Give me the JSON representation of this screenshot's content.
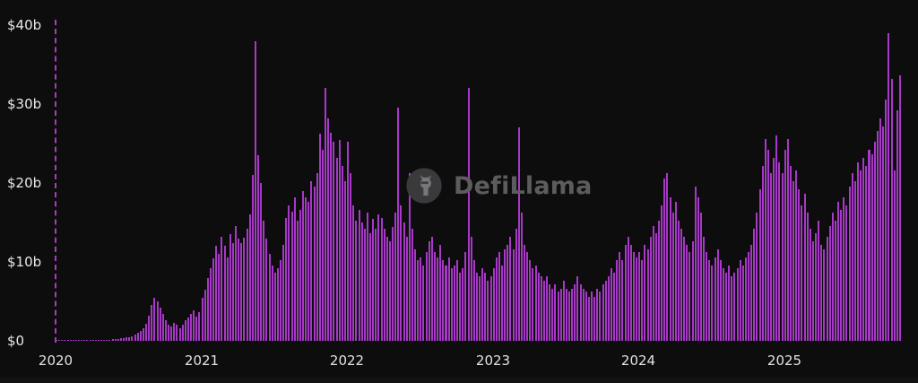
{
  "watermark": {
    "text": "DefiLlama"
  },
  "chart_data": {
    "type": "bar",
    "title": "",
    "xlabel": "",
    "ylabel": "",
    "unit": "USD billions",
    "interval": "weekly",
    "x_range": [
      "2020-01",
      "2025-10"
    ],
    "ylim": [
      0,
      40
    ],
    "grid": false,
    "legend": "none",
    "y_ticks": [
      "$0",
      "$10b",
      "$20b",
      "$30b",
      "$40b"
    ],
    "y_tick_values": [
      0,
      10,
      20,
      30,
      40
    ],
    "x_tick_labels": [
      "2020",
      "2021",
      "2022",
      "2023",
      "2024",
      "2025"
    ],
    "weeks_per_tick": 52,
    "colors": {
      "bar": "#a838c8",
      "marker": "#bf3fd4",
      "axis_text": "#e8e8ea",
      "background": "#0d0d0e",
      "watermark": "#5c5c5e"
    },
    "values": [
      0.02,
      0.02,
      0.03,
      0.03,
      0.04,
      0.04,
      0.05,
      0.05,
      0.06,
      0.06,
      0.07,
      0.07,
      0.08,
      0.08,
      0.09,
      0.1,
      0.1,
      0.12,
      0.14,
      0.16,
      0.18,
      0.2,
      0.25,
      0.3,
      0.35,
      0.4,
      0.5,
      0.6,
      0.8,
      1.0,
      1.3,
      1.6,
      2.2,
      3.2,
      4.6,
      5.5,
      5.0,
      4.2,
      3.4,
      2.6,
      2.1,
      1.8,
      2.3,
      2.0,
      1.6,
      2.1,
      2.6,
      3.0,
      3.4,
      3.9,
      3.1,
      3.6,
      5.5,
      6.5,
      8.0,
      9.2,
      10.5,
      12.0,
      11.0,
      13.2,
      12.0,
      10.6,
      13.5,
      12.4,
      14.6,
      13.0,
      12.4,
      13.1,
      14.2,
      16.0,
      21.0,
      38.0,
      23.5,
      20.0,
      15.2,
      13.0,
      11.0,
      9.6,
      8.6,
      9.2,
      10.2,
      12.2,
      15.6,
      17.2,
      16.4,
      18.2,
      15.2,
      16.6,
      19.0,
      18.2,
      17.6,
      20.2,
      19.6,
      21.2,
      26.2,
      24.2,
      32.0,
      28.2,
      26.4,
      25.2,
      23.2,
      25.4,
      22.2,
      20.2,
      25.2,
      21.2,
      17.2,
      15.2,
      16.6,
      15.0,
      14.2,
      16.2,
      13.6,
      15.4,
      14.2,
      16.0,
      15.6,
      14.2,
      13.2,
      12.6,
      14.4,
      16.2,
      29.6,
      17.2,
      15.0,
      13.2,
      21.2,
      14.2,
      11.6,
      10.2,
      10.6,
      9.6,
      11.2,
      12.6,
      13.2,
      11.2,
      10.6,
      12.2,
      10.2,
      9.6,
      10.6,
      9.2,
      9.6,
      10.2,
      8.6,
      9.2,
      11.2,
      32.0,
      13.2,
      10.2,
      8.6,
      8.2,
      9.2,
      8.6,
      7.6,
      8.2,
      9.2,
      10.6,
      11.2,
      9.6,
      11.6,
      12.2,
      13.2,
      11.6,
      14.2,
      27.0,
      16.2,
      12.2,
      11.2,
      10.2,
      9.2,
      9.6,
      8.6,
      8.2,
      7.6,
      8.2,
      7.2,
      6.6,
      7.2,
      6.2,
      6.6,
      7.6,
      6.6,
      6.2,
      6.6,
      7.2,
      8.2,
      7.2,
      6.6,
      6.2,
      5.6,
      6.2,
      5.6,
      6.6,
      6.2,
      7.2,
      7.6,
      8.2,
      9.2,
      8.6,
      10.2,
      11.2,
      10.2,
      12.2,
      13.2,
      12.2,
      11.2,
      10.6,
      11.2,
      10.2,
      12.2,
      11.6,
      13.2,
      14.6,
      13.6,
      15.2,
      17.2,
      20.6,
      21.2,
      18.2,
      16.2,
      17.6,
      15.2,
      14.2,
      13.2,
      12.2,
      11.2,
      12.6,
      19.6,
      18.2,
      16.2,
      13.2,
      11.2,
      10.2,
      9.6,
      10.6,
      11.6,
      10.2,
      9.2,
      8.6,
      9.6,
      8.2,
      8.6,
      9.2,
      10.2,
      9.6,
      10.6,
      11.2,
      12.2,
      14.2,
      16.2,
      19.2,
      22.2,
      25.6,
      24.2,
      21.2,
      23.2,
      26.0,
      22.6,
      21.2,
      24.2,
      25.6,
      22.2,
      20.2,
      21.6,
      19.2,
      17.2,
      18.6,
      16.2,
      14.2,
      12.6,
      13.6,
      15.2,
      12.2,
      11.6,
      13.2,
      14.6,
      16.2,
      15.2,
      17.6,
      16.6,
      18.2,
      17.2,
      19.6,
      21.2,
      20.2,
      22.6,
      21.6,
      23.2,
      22.2,
      24.2,
      23.6,
      25.2,
      26.6,
      28.2,
      27.2,
      30.6,
      39.0,
      33.2,
      21.6,
      29.2,
      33.6
    ]
  }
}
